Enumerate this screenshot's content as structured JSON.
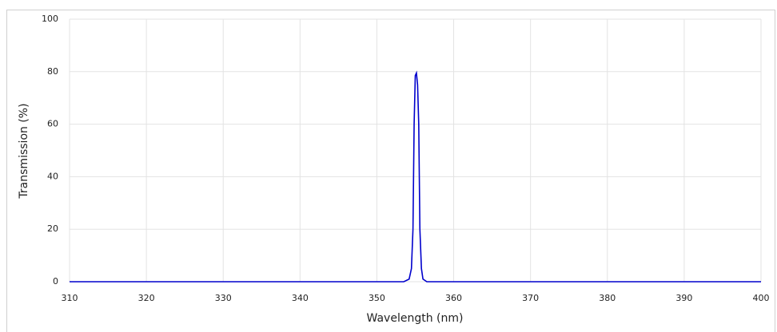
{
  "chart_data": {
    "type": "line",
    "x_label": "Wavelength (nm)",
    "y_label": "Transmission (%)",
    "x": [
      310,
      353.5,
      354.2,
      354.5,
      354.7,
      354.85,
      355.0,
      355.15,
      355.3,
      355.45,
      355.6,
      355.8,
      356.0,
      356.5,
      400
    ],
    "series": [
      {
        "color": "#0000cc",
        "values": [
          0,
          0,
          1,
          5,
          20,
          60,
          78.5,
          79.5,
          75,
          60,
          20,
          5,
          1,
          0,
          0
        ]
      }
    ],
    "xlim": [
      310,
      400
    ],
    "xticks": [
      310,
      320,
      330,
      340,
      350,
      360,
      370,
      380,
      390,
      400
    ],
    "ylim": [
      0,
      100
    ],
    "yticks": [
      0,
      20,
      40,
      60,
      80,
      100
    ],
    "grid": true
  }
}
